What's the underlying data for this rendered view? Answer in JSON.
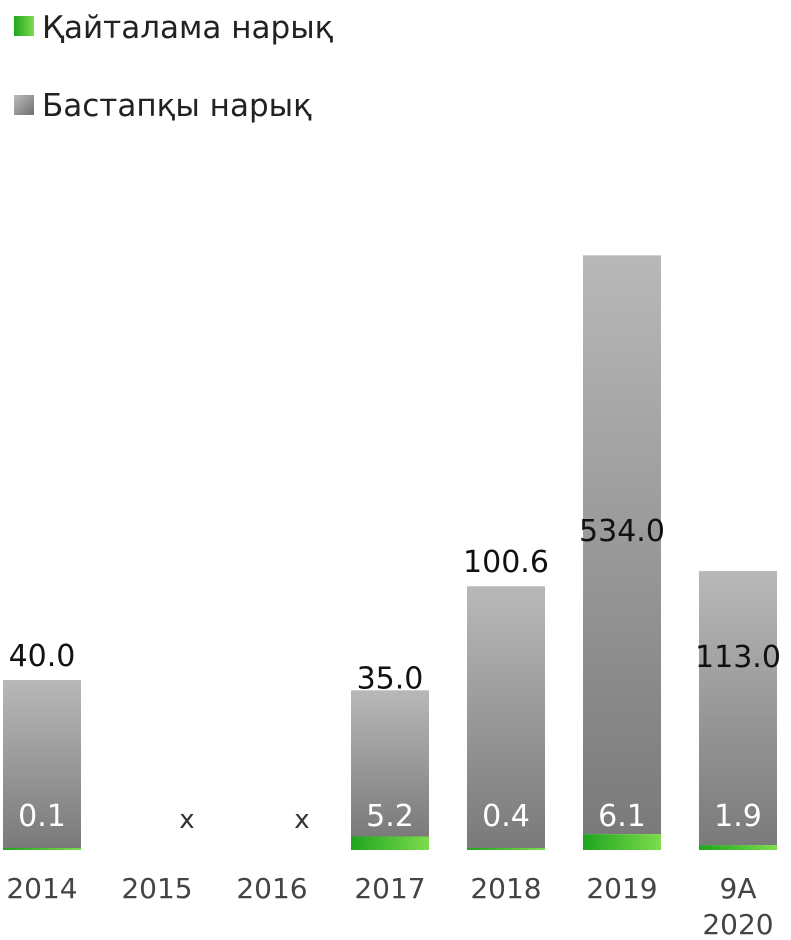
{
  "chart_data": {
    "type": "bar",
    "stacked": true,
    "categories": [
      [
        "2014"
      ],
      [
        "2015"
      ],
      [
        "2016"
      ],
      [
        "2017"
      ],
      [
        "2018"
      ],
      [
        "2019"
      ],
      [
        "9A",
        "2020"
      ]
    ],
    "series": [
      {
        "name": "Қайталама нарық",
        "values": [
          0.1,
          null,
          null,
          5.2,
          0.4,
          6.1,
          1.9
        ],
        "labels": [
          "0.1",
          "",
          "",
          "5.2",
          "0.4",
          "6.1",
          "1.9"
        ],
        "color": "#2fb52f"
      },
      {
        "name": "Бастапқы нарық",
        "values": [
          40.0,
          null,
          null,
          35.0,
          100.6,
          534.0,
          113.0
        ],
        "labels": [
          "40.0",
          "",
          "",
          "35.0",
          "100.6",
          "534.0",
          "113.0"
        ],
        "color": "#8c8c8c"
      }
    ],
    "missing_marker": "x",
    "missing_labels": [
      "",
      "x",
      "x",
      "",
      "",
      "",
      ""
    ],
    "legend_position": "top-left",
    "grid": false,
    "xlabel": "",
    "ylabel": "",
    "title": ""
  }
}
